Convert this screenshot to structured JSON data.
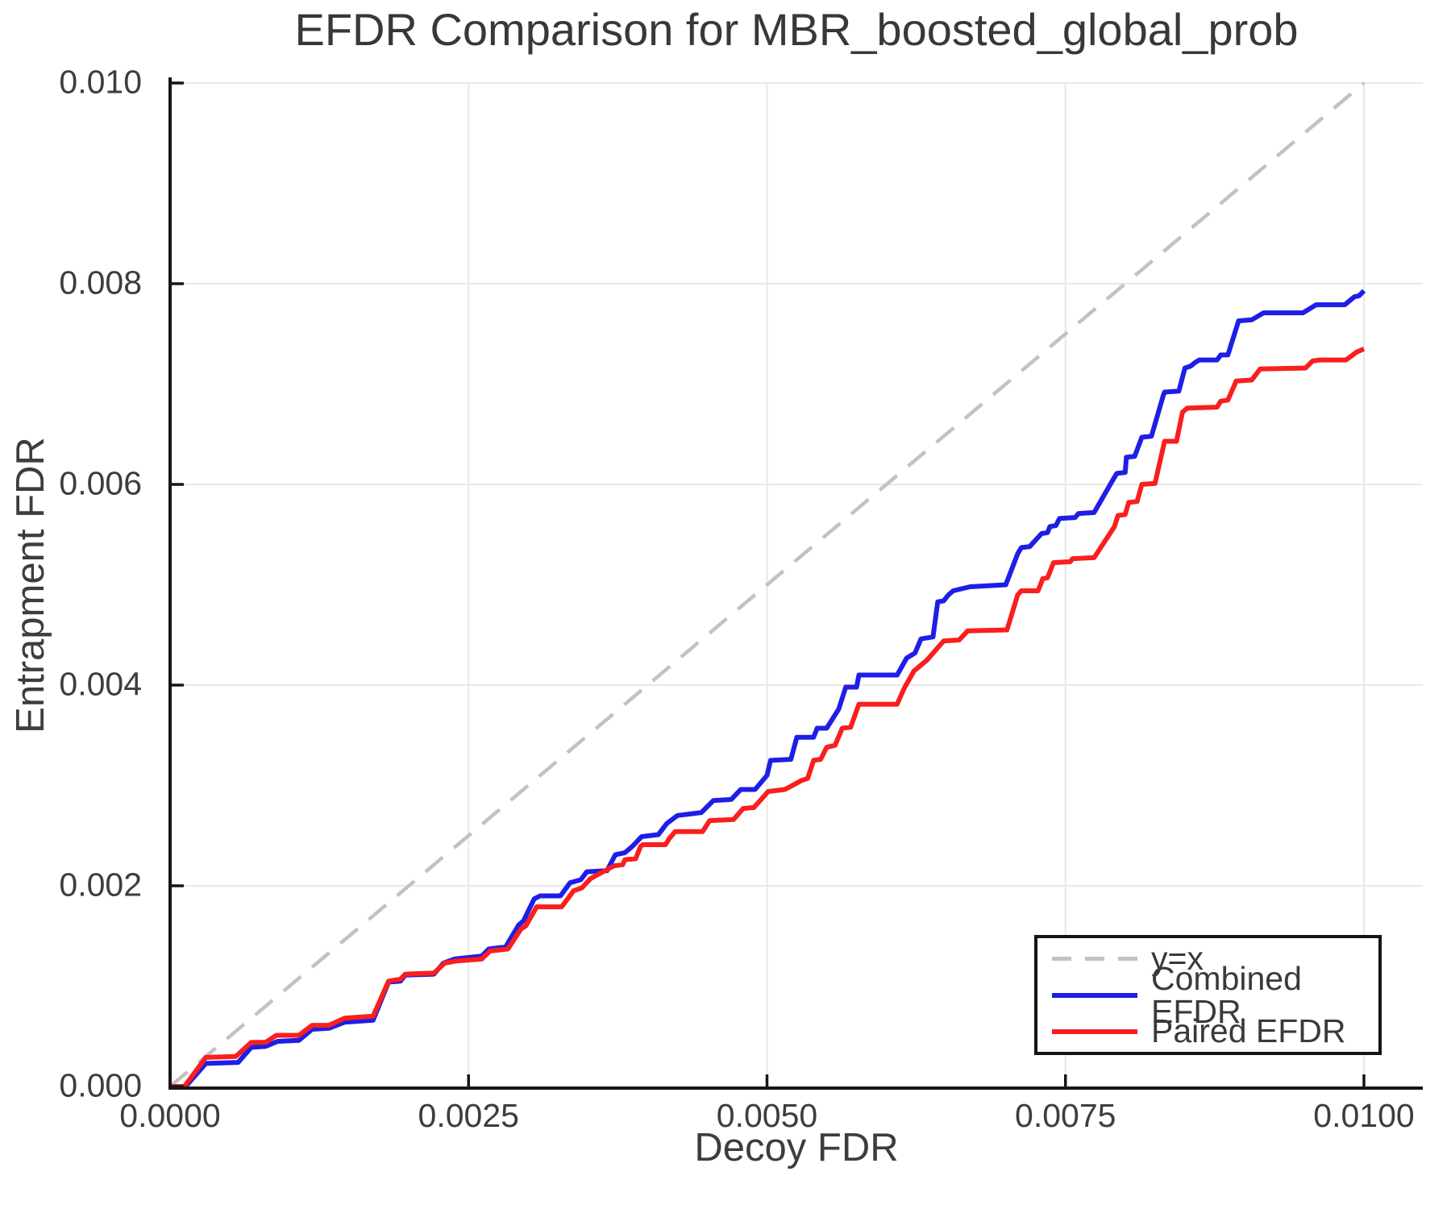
{
  "figure": {
    "title": "EFDR Comparison for MBR_boosted_global_prob"
  },
  "chart_data": {
    "type": "line",
    "title": "EFDR Comparison for MBR_boosted_global_prob",
    "xlabel": "Decoy FDR",
    "ylabel": "Entrapment FDR",
    "xlim": [
      0,
      0.0105
    ],
    "ylim": [
      0,
      0.01
    ],
    "grid": true,
    "grid_color": "#e8e8e8",
    "axis_color": "#161616",
    "text_color": "#3d3d3d",
    "legend_position": "lower right",
    "x_ticks": [
      0,
      0.0025,
      0.005,
      0.0075,
      0.01
    ],
    "x_tick_labels": [
      "0.0000",
      "0.0025",
      "0.0050",
      "0.0075",
      "0.0100"
    ],
    "y_ticks": [
      0,
      0.002,
      0.004,
      0.006,
      0.008,
      0.01
    ],
    "y_tick_labels": [
      "0.000",
      "0.002",
      "0.004",
      "0.006",
      "0.008",
      "0.010"
    ],
    "series": [
      {
        "name": "y=x",
        "color": "#c2c2c2",
        "dash": true,
        "width": 4.5,
        "points": [
          [
            0,
            0
          ],
          [
            0.01,
            0.01
          ]
        ]
      },
      {
        "name": "Combined EFDR",
        "color": "#1e1ee6",
        "dash": false,
        "width": 6,
        "points": [
          [
            0,
            0
          ],
          [
            0.00013,
            0
          ],
          [
            0.0003,
            0.00023
          ],
          [
            0.00057,
            0.00024
          ],
          [
            0.00068,
            0.00039
          ],
          [
            0.0008,
            0.0004
          ],
          [
            0.0009,
            0.00045
          ],
          [
            0.00108,
            0.00046
          ],
          [
            0.00119,
            0.00057
          ],
          [
            0.00133,
            0.00058
          ],
          [
            0.00146,
            0.00064
          ],
          [
            0.0017,
            0.00066
          ],
          [
            0.00183,
            0.00104
          ],
          [
            0.00193,
            0.00105
          ],
          [
            0.00197,
            0.00111
          ],
          [
            0.00221,
            0.00112
          ],
          [
            0.00229,
            0.00123
          ],
          [
            0.00238,
            0.00127
          ],
          [
            0.00261,
            0.0013
          ],
          [
            0.00267,
            0.00137
          ],
          [
            0.00281,
            0.00139
          ],
          [
            0.00292,
            0.00161
          ],
          [
            0.00296,
            0.00165
          ],
          [
            0.00305,
            0.00187
          ],
          [
            0.0031,
            0.0019
          ],
          [
            0.00327,
            0.0019
          ],
          [
            0.00335,
            0.00203
          ],
          [
            0.00344,
            0.00206
          ],
          [
            0.00349,
            0.00214
          ],
          [
            0.00366,
            0.00215
          ],
          [
            0.00373,
            0.00231
          ],
          [
            0.00381,
            0.00233
          ],
          [
            0.00387,
            0.00239
          ],
          [
            0.00395,
            0.00249
          ],
          [
            0.00409,
            0.00251
          ],
          [
            0.00416,
            0.00262
          ],
          [
            0.00425,
            0.0027
          ],
          [
            0.00445,
            0.00273
          ],
          [
            0.00455,
            0.00285
          ],
          [
            0.0047,
            0.00286
          ],
          [
            0.00478,
            0.00296
          ],
          [
            0.0049,
            0.00296
          ],
          [
            0.005,
            0.0031
          ],
          [
            0.00503,
            0.00325
          ],
          [
            0.0052,
            0.00326
          ],
          [
            0.00525,
            0.00348
          ],
          [
            0.00539,
            0.00348
          ],
          [
            0.00542,
            0.00357
          ],
          [
            0.0055,
            0.00357
          ],
          [
            0.0056,
            0.00376
          ],
          [
            0.00566,
            0.00398
          ],
          [
            0.00575,
            0.00398
          ],
          [
            0.00577,
            0.0041
          ],
          [
            0.00609,
            0.0041
          ],
          [
            0.00617,
            0.00427
          ],
          [
            0.00624,
            0.00432
          ],
          [
            0.00629,
            0.00446
          ],
          [
            0.00639,
            0.00448
          ],
          [
            0.00643,
            0.00483
          ],
          [
            0.00648,
            0.00484
          ],
          [
            0.00652,
            0.0049
          ],
          [
            0.00656,
            0.00494
          ],
          [
            0.0067,
            0.00498
          ],
          [
            0.007,
            0.005
          ],
          [
            0.0071,
            0.00531
          ],
          [
            0.00713,
            0.00537
          ],
          [
            0.0072,
            0.00538
          ],
          [
            0.0073,
            0.00551
          ],
          [
            0.00735,
            0.00552
          ],
          [
            0.00737,
            0.00558
          ],
          [
            0.00742,
            0.00559
          ],
          [
            0.00745,
            0.00566
          ],
          [
            0.00758,
            0.00567
          ],
          [
            0.00761,
            0.00571
          ],
          [
            0.00774,
            0.00572
          ],
          [
            0.00789,
            0.00603
          ],
          [
            0.00793,
            0.00611
          ],
          [
            0.008,
            0.00612
          ],
          [
            0.00801,
            0.00627
          ],
          [
            0.00808,
            0.00628
          ],
          [
            0.00814,
            0.00647
          ],
          [
            0.00822,
            0.00648
          ],
          [
            0.00832,
            0.00689
          ],
          [
            0.00833,
            0.00692
          ],
          [
            0.00845,
            0.00693
          ],
          [
            0.0085,
            0.00716
          ],
          [
            0.00855,
            0.00718
          ],
          [
            0.00858,
            0.00721
          ],
          [
            0.00862,
            0.00724
          ],
          [
            0.00877,
            0.00724
          ],
          [
            0.0088,
            0.00729
          ],
          [
            0.00886,
            0.00729
          ],
          [
            0.00895,
            0.00763
          ],
          [
            0.00906,
            0.00764
          ],
          [
            0.00916,
            0.00771
          ],
          [
            0.00949,
            0.00771
          ],
          [
            0.0096,
            0.00779
          ],
          [
            0.00984,
            0.00779
          ],
          [
            0.00992,
            0.00787
          ],
          [
            0.00996,
            0.00788
          ],
          [
            0.01,
            0.00793
          ]
        ]
      },
      {
        "name": "Paired EFDR",
        "color": "#fa1e1e",
        "dash": false,
        "width": 6,
        "points": [
          [
            0,
            0
          ],
          [
            0.00012,
            0
          ],
          [
            0.0003,
            0.00029
          ],
          [
            0.00055,
            0.0003
          ],
          [
            0.00068,
            0.00044
          ],
          [
            0.0008,
            0.00044
          ],
          [
            0.00089,
            0.00051
          ],
          [
            0.00108,
            0.00051
          ],
          [
            0.00119,
            0.00061
          ],
          [
            0.00133,
            0.00061
          ],
          [
            0.00146,
            0.00068
          ],
          [
            0.0017,
            0.0007
          ],
          [
            0.00183,
            0.00105
          ],
          [
            0.00193,
            0.00107
          ],
          [
            0.00197,
            0.00112
          ],
          [
            0.00221,
            0.00113
          ],
          [
            0.0023,
            0.00123
          ],
          [
            0.00239,
            0.00125
          ],
          [
            0.00261,
            0.00127
          ],
          [
            0.00268,
            0.00135
          ],
          [
            0.00283,
            0.00137
          ],
          [
            0.00294,
            0.00157
          ],
          [
            0.00298,
            0.0016
          ],
          [
            0.00307,
            0.00179
          ],
          [
            0.00328,
            0.00179
          ],
          [
            0.00338,
            0.00195
          ],
          [
            0.00345,
            0.00198
          ],
          [
            0.00352,
            0.00207
          ],
          [
            0.00372,
            0.0022
          ],
          [
            0.00379,
            0.00221
          ],
          [
            0.00381,
            0.00226
          ],
          [
            0.0039,
            0.00227
          ],
          [
            0.00394,
            0.00239
          ],
          [
            0.00396,
            0.00241
          ],
          [
            0.00415,
            0.00241
          ],
          [
            0.00418,
            0.00247
          ],
          [
            0.00423,
            0.00254
          ],
          [
            0.00446,
            0.00254
          ],
          [
            0.00452,
            0.00265
          ],
          [
            0.00472,
            0.00266
          ],
          [
            0.0048,
            0.00277
          ],
          [
            0.00489,
            0.00278
          ],
          [
            0.00501,
            0.00294
          ],
          [
            0.00515,
            0.00296
          ],
          [
            0.00529,
            0.00305
          ],
          [
            0.00534,
            0.00307
          ],
          [
            0.00539,
            0.00325
          ],
          [
            0.00545,
            0.00326
          ],
          [
            0.0055,
            0.00338
          ],
          [
            0.00557,
            0.0034
          ],
          [
            0.00563,
            0.00357
          ],
          [
            0.0057,
            0.00358
          ],
          [
            0.00577,
            0.00381
          ],
          [
            0.00609,
            0.00381
          ],
          [
            0.00615,
            0.00397
          ],
          [
            0.00623,
            0.00414
          ],
          [
            0.00634,
            0.00425
          ],
          [
            0.00648,
            0.00444
          ],
          [
            0.00661,
            0.00445
          ],
          [
            0.00668,
            0.00454
          ],
          [
            0.00701,
            0.00455
          ],
          [
            0.0071,
            0.0049
          ],
          [
            0.00713,
            0.00494
          ],
          [
            0.00727,
            0.00494
          ],
          [
            0.00731,
            0.00506
          ],
          [
            0.00735,
            0.00507
          ],
          [
            0.0074,
            0.00522
          ],
          [
            0.00754,
            0.00523
          ],
          [
            0.00756,
            0.00526
          ],
          [
            0.00774,
            0.00527
          ],
          [
            0.00791,
            0.00558
          ],
          [
            0.00794,
            0.00569
          ],
          [
            0.008,
            0.0057
          ],
          [
            0.00803,
            0.00582
          ],
          [
            0.0081,
            0.00583
          ],
          [
            0.00814,
            0.006
          ],
          [
            0.00825,
            0.00601
          ],
          [
            0.00833,
            0.00643
          ],
          [
            0.00843,
            0.00643
          ],
          [
            0.00848,
            0.00672
          ],
          [
            0.00852,
            0.00676
          ],
          [
            0.00877,
            0.00677
          ],
          [
            0.0088,
            0.00683
          ],
          [
            0.00886,
            0.00684
          ],
          [
            0.00893,
            0.00703
          ],
          [
            0.00906,
            0.00704
          ],
          [
            0.00913,
            0.00715
          ],
          [
            0.00951,
            0.00716
          ],
          [
            0.00957,
            0.00723
          ],
          [
            0.00963,
            0.00724
          ],
          [
            0.00985,
            0.00724
          ],
          [
            0.00994,
            0.00732
          ],
          [
            0.01,
            0.00735
          ]
        ]
      }
    ]
  }
}
